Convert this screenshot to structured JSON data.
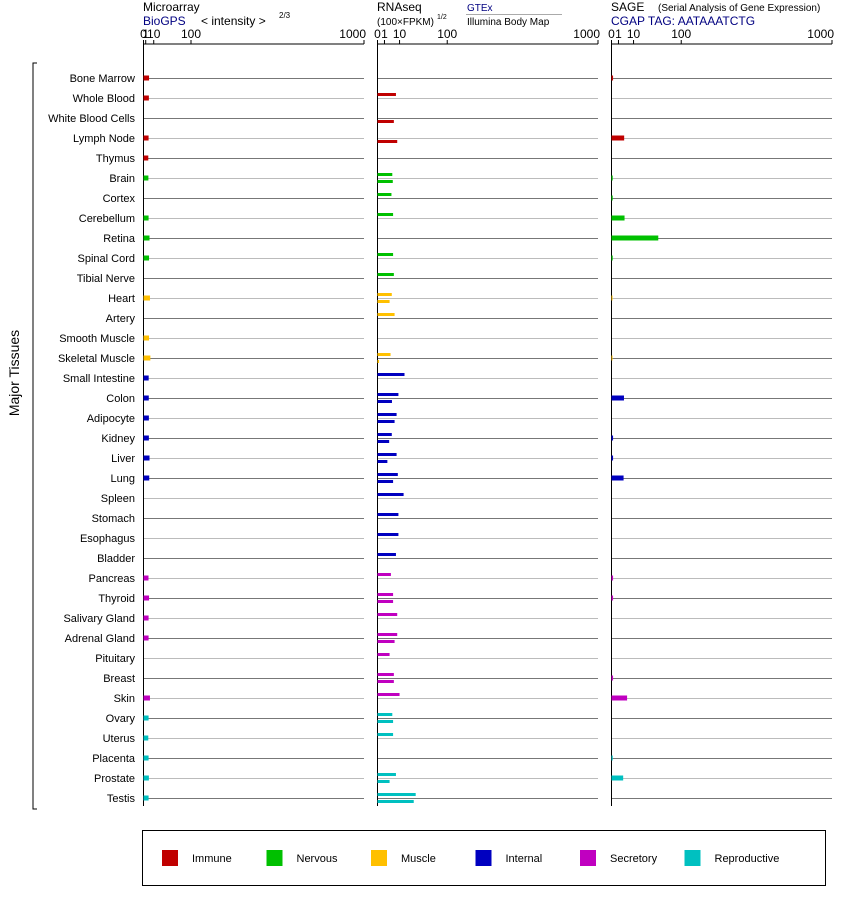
{
  "panels": [
    {
      "id": "microarray",
      "title": "Microarray",
      "subtitle": "BioGPS",
      "scale_label": "< intensity >",
      "scale_exponent": "2/3",
      "ticks": [
        "0",
        "1",
        "10",
        "100",
        "1000"
      ]
    },
    {
      "id": "rnaseq",
      "title": "RNAseq",
      "scale_label": "(100×FPKM)",
      "scale_exponent": "1/2",
      "source_top": "GTEx",
      "source_bottom": "Illumina Body Map",
      "ticks": [
        "0",
        "1",
        "10",
        "100",
        "1000"
      ]
    },
    {
      "id": "sage",
      "title": "SAGE",
      "title_note": "(Serial Analysis of Gene Expression)",
      "subtitle": "CGAP TAG: AATAAATCTG",
      "ticks": [
        "0",
        "1",
        "10",
        "100",
        "1000"
      ]
    }
  ],
  "y_axis_label": "Major Tissues",
  "legend": [
    {
      "key": "immune",
      "label": "Immune",
      "color": "#c00000"
    },
    {
      "key": "nervous",
      "label": "Nervous",
      "color": "#00c000"
    },
    {
      "key": "muscle",
      "label": "Muscle",
      "color": "#ffc000"
    },
    {
      "key": "internal",
      "label": "Internal",
      "color": "#0000c0"
    },
    {
      "key": "secretory",
      "label": "Secretory",
      "color": "#c000c0"
    },
    {
      "key": "reproductive",
      "label": "Reproductive",
      "color": "#00c0c0"
    }
  ],
  "chart_data": {
    "type": "bar",
    "orientation": "horizontal",
    "x_scale": "power",
    "x_range": [
      0,
      1000
    ],
    "tissues": [
      {
        "name": "Bone Marrow",
        "group": "immune",
        "microarray": 4.0,
        "gtex": null,
        "ibm": null,
        "sage": 0.05
      },
      {
        "name": "Whole Blood",
        "group": "immune",
        "microarray": 3.8,
        "gtex": 7.0,
        "ibm": null,
        "sage": null
      },
      {
        "name": "White Blood Cells",
        "group": "immune",
        "microarray": null,
        "gtex": null,
        "ibm": 5.5,
        "sage": null
      },
      {
        "name": "Lymph Node",
        "group": "immune",
        "microarray": 3.5,
        "gtex": null,
        "ibm": 8.0,
        "sage": 3.3
      },
      {
        "name": "Thymus",
        "group": "immune",
        "microarray": 3.2,
        "gtex": null,
        "ibm": null,
        "sage": null
      },
      {
        "name": "Brain",
        "group": "nervous",
        "microarray": 3.3,
        "gtex": 4.5,
        "ibm": 4.8,
        "sage": 0.03
      },
      {
        "name": "Cortex",
        "group": "nervous",
        "microarray": null,
        "gtex": 4.0,
        "ibm": null,
        "sage": 0.03
      },
      {
        "name": "Cerebellum",
        "group": "nervous",
        "microarray": 3.5,
        "gtex": 5.0,
        "ibm": null,
        "sage": 3.5
      },
      {
        "name": "Retina",
        "group": "nervous",
        "microarray": 4.5,
        "gtex": null,
        "ibm": null,
        "sage": 45
      },
      {
        "name": "Spinal Cord",
        "group": "nervous",
        "microarray": 4.0,
        "gtex": 5.0,
        "ibm": null,
        "sage": 0.03
      },
      {
        "name": "Tibial Nerve",
        "group": "nervous",
        "microarray": null,
        "gtex": 5.5,
        "ibm": null,
        "sage": null
      },
      {
        "name": "Heart",
        "group": "muscle",
        "microarray": 5.0,
        "gtex": 4.2,
        "ibm": 3.0,
        "sage": 0.02
      },
      {
        "name": "Artery",
        "group": "muscle",
        "microarray": null,
        "gtex": 6.0,
        "ibm": null,
        "sage": null
      },
      {
        "name": "Smooth Muscle",
        "group": "muscle",
        "microarray": 4.0,
        "gtex": null,
        "ibm": null,
        "sage": null
      },
      {
        "name": "Skeletal Muscle",
        "group": "muscle",
        "microarray": 5.5,
        "gtex": 3.5,
        "ibm": 0.05,
        "sage": 0.02
      },
      {
        "name": "Small Intestine",
        "group": "internal",
        "microarray": 3.6,
        "gtex": 15,
        "ibm": null,
        "sage": null
      },
      {
        "name": "Colon",
        "group": "internal",
        "microarray": 3.7,
        "gtex": 9.0,
        "ibm": 4.3,
        "sage": 3.2
      },
      {
        "name": "Adipocyte",
        "group": "internal",
        "microarray": 3.8,
        "gtex": 7.5,
        "ibm": 6.0,
        "sage": null
      },
      {
        "name": "Kidney",
        "group": "internal",
        "microarray": 3.8,
        "gtex": 4.2,
        "ibm": 2.8,
        "sage": 0.05
      },
      {
        "name": "Liver",
        "group": "internal",
        "microarray": 4.5,
        "gtex": 7.5,
        "ibm": 2.0,
        "sage": 0.05
      },
      {
        "name": "Lung",
        "group": "internal",
        "microarray": 4.2,
        "gtex": 8.5,
        "ibm": 5.0,
        "sage": 3.0
      },
      {
        "name": "Spleen",
        "group": "internal",
        "microarray": null,
        "gtex": 14,
        "ibm": null,
        "sage": null
      },
      {
        "name": "Stomach",
        "group": "internal",
        "microarray": null,
        "gtex": 9.0,
        "ibm": null,
        "sage": null
      },
      {
        "name": "Esophagus",
        "group": "internal",
        "microarray": null,
        "gtex": 9.0,
        "ibm": null,
        "sage": null
      },
      {
        "name": "Bladder",
        "group": "internal",
        "microarray": null,
        "gtex": 7.0,
        "ibm": null,
        "sage": null
      },
      {
        "name": "Pancreas",
        "group": "secretory",
        "microarray": 3.4,
        "gtex": 3.7,
        "ibm": null,
        "sage": 0.05
      },
      {
        "name": "Thyroid",
        "group": "secretory",
        "microarray": 4.0,
        "gtex": 5.0,
        "ibm": 5.0,
        "sage": 0.05
      },
      {
        "name": "Salivary Gland",
        "group": "secretory",
        "microarray": 3.5,
        "gtex": 8.0,
        "ibm": null,
        "sage": null
      },
      {
        "name": "Adrenal Gland",
        "group": "secretory",
        "microarray": 3.5,
        "gtex": 8.0,
        "ibm": 6.0,
        "sage": null
      },
      {
        "name": "Pituitary",
        "group": "secretory",
        "microarray": null,
        "gtex": 3.0,
        "ibm": null,
        "sage": null
      },
      {
        "name": "Breast",
        "group": "secretory",
        "microarray": null,
        "gtex": 5.5,
        "ibm": 5.5,
        "sage": 0.05
      },
      {
        "name": "Skin",
        "group": "secretory",
        "microarray": 5.0,
        "gtex": 10,
        "ibm": null,
        "sage": 5.0
      },
      {
        "name": "Ovary",
        "group": "reproductive",
        "microarray": 3.5,
        "gtex": 4.5,
        "ibm": 5.0,
        "sage": null
      },
      {
        "name": "Uterus",
        "group": "reproductive",
        "microarray": 3.2,
        "gtex": 5.0,
        "ibm": null,
        "sage": null
      },
      {
        "name": "Placenta",
        "group": "reproductive",
        "microarray": 3.5,
        "gtex": null,
        "ibm": null,
        "sage": 0.03
      },
      {
        "name": "Prostate",
        "group": "reproductive",
        "microarray": 3.8,
        "gtex": 7.0,
        "ibm": 3.0,
        "sage": 2.8
      },
      {
        "name": "Testis",
        "group": "reproductive",
        "microarray": 3.5,
        "gtex": 30,
        "ibm": 27,
        "sage": null
      }
    ]
  }
}
